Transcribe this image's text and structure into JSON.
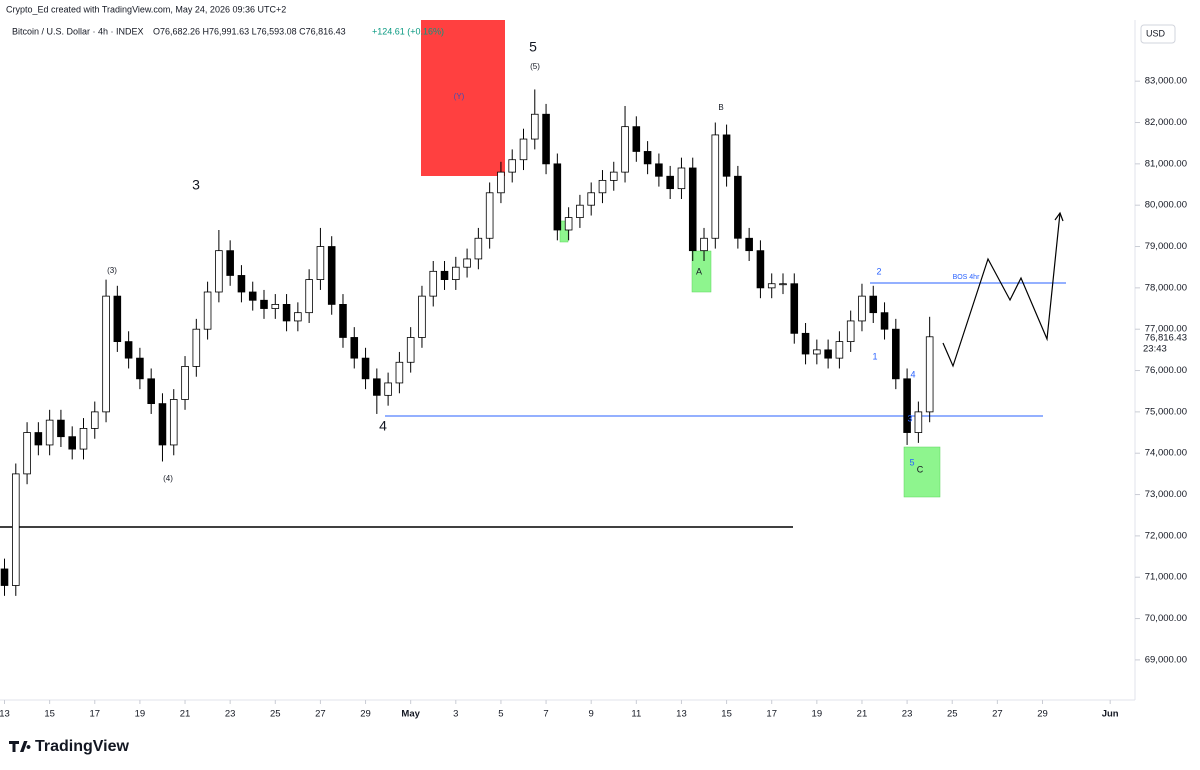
{
  "header": {
    "credit": "Crypto_Ed created with TradingView.com, May 24, 2026 09:36 UTC+2",
    "symbol": "Bitcoin / U.S. Dollar · 4h · INDEX",
    "ohlc": "O76,682.26 H76,991.63 L76,593.08 C76,816.43",
    "change": "+124.61 (+0.16%)",
    "currency": "USD",
    "last_price_label": "76,816.43",
    "countdown": "23:43",
    "brand": "TradingView"
  },
  "chart_data": {
    "type": "candlestick",
    "up_color": "#ffffff",
    "down_color": "#000000",
    "outline_color": "#000000",
    "xlim": [
      -0.2,
      50.1
    ],
    "ylim": [
      68030,
      84480
    ],
    "xticks": [
      {
        "value": 0,
        "label": "13"
      },
      {
        "value": 2,
        "label": "15"
      },
      {
        "value": 4,
        "label": "17"
      },
      {
        "value": 6,
        "label": "19"
      },
      {
        "value": 8,
        "label": "21"
      },
      {
        "value": 10,
        "label": "23"
      },
      {
        "value": 12,
        "label": "25"
      },
      {
        "value": 14,
        "label": "27"
      },
      {
        "value": 16,
        "label": "29"
      },
      {
        "value": 18,
        "label": "May"
      },
      {
        "value": 20,
        "label": "3"
      },
      {
        "value": 22,
        "label": "5"
      },
      {
        "value": 24,
        "label": "7"
      },
      {
        "value": 26,
        "label": "9"
      },
      {
        "value": 28,
        "label": "11"
      },
      {
        "value": 30,
        "label": "13"
      },
      {
        "value": 32,
        "label": "15"
      },
      {
        "value": 34,
        "label": "17"
      },
      {
        "value": 36,
        "label": "19"
      },
      {
        "value": 38,
        "label": "21"
      },
      {
        "value": 40,
        "label": "23"
      },
      {
        "value": 42,
        "label": "25"
      },
      {
        "value": 44,
        "label": "27"
      },
      {
        "value": 46,
        "label": "29"
      },
      {
        "value": 49,
        "label": "Jun"
      }
    ],
    "yticks": [
      {
        "value": 69000,
        "label": "69,000.00"
      },
      {
        "value": 70000,
        "label": "70,000.00"
      },
      {
        "value": 71000,
        "label": "71,000.00"
      },
      {
        "value": 72000,
        "label": "72,000.00"
      },
      {
        "value": 73000,
        "label": "73,000.00"
      },
      {
        "value": 74000,
        "label": "74,000.00"
      },
      {
        "value": 75000,
        "label": "75,000.00"
      },
      {
        "value": 76000,
        "label": "76,000.00"
      },
      {
        "value": 77000,
        "label": "77,000.00"
      },
      {
        "value": 78000,
        "label": "78,000.00"
      },
      {
        "value": 79000,
        "label": "79,000.00"
      },
      {
        "value": 80000,
        "label": "80,000.00"
      },
      {
        "value": 81000,
        "label": "81,000.00"
      },
      {
        "value": 82000,
        "label": "82,000.00"
      },
      {
        "value": 83000,
        "label": "83,000.00"
      }
    ],
    "x": [
      0,
      0.5,
      1,
      1.5,
      2,
      2.5,
      3,
      3.5,
      4,
      4.5,
      5,
      5.5,
      6,
      6.5,
      7,
      7.5,
      8,
      8.5,
      9,
      9.5,
      10,
      10.5,
      11,
      11.5,
      12,
      12.5,
      13,
      13.5,
      14,
      14.5,
      15,
      15.5,
      16,
      16.5,
      17,
      17.5,
      18,
      18.5,
      19,
      19.5,
      20,
      20.5,
      21,
      21.5,
      22,
      22.5,
      23,
      23.5,
      24,
      24.5,
      25,
      25.5,
      26,
      26.5,
      27,
      27.5,
      28,
      28.5,
      29,
      29.5,
      30,
      30.5,
      31,
      31.5,
      32,
      32.5,
      33,
      33.5,
      34,
      34.5,
      35,
      35.5,
      36,
      36.5,
      37,
      37.5,
      38,
      38.5,
      39,
      39.5,
      40,
      40.5,
      41
    ],
    "open": [
      71200,
      70800,
      73500,
      74500,
      74200,
      74800,
      74400,
      74100,
      74600,
      75000,
      77800,
      76700,
      76300,
      75800,
      75200,
      74200,
      75300,
      76100,
      77000,
      77900,
      78900,
      78300,
      77900,
      77700,
      77500,
      77600,
      77200,
      77400,
      78200,
      79000,
      77600,
      76800,
      76300,
      75800,
      75400,
      75700,
      76200,
      76800,
      77800,
      78400,
      78200,
      78500,
      78700,
      79200,
      80300,
      80800,
      81100,
      81600,
      82200,
      81000,
      79400,
      79700,
      80000,
      80300,
      80600,
      80800,
      81900,
      81300,
      81000,
      80700,
      80400,
      80900,
      78900,
      79200,
      81700,
      80700,
      79200,
      78900,
      78000,
      78100,
      78100,
      76900,
      76400,
      76500,
      76300,
      76700,
      77200,
      77800,
      77400,
      77000,
      75800,
      74500,
      75000
    ],
    "high": [
      71450,
      73750,
      74750,
      74750,
      75050,
      75050,
      74650,
      74850,
      75250,
      78200,
      78050,
      76950,
      76550,
      76050,
      75450,
      75550,
      76350,
      77250,
      78150,
      79400,
      79150,
      78550,
      78150,
      77950,
      77850,
      77850,
      77650,
      78450,
      79450,
      79250,
      77850,
      77050,
      76550,
      76050,
      75950,
      76450,
      77050,
      78050,
      78650,
      78650,
      78750,
      78950,
      79450,
      80550,
      81050,
      81350,
      81850,
      82800,
      82450,
      81250,
      79950,
      80250,
      80550,
      80850,
      81050,
      82400,
      82150,
      81550,
      81250,
      80950,
      81150,
      81150,
      79450,
      82000,
      81950,
      80950,
      79450,
      79150,
      78350,
      78350,
      78350,
      77150,
      76750,
      76750,
      76950,
      77450,
      78100,
      78050,
      77650,
      77250,
      76050,
      75250,
      77300
    ],
    "low": [
      70550,
      70550,
      73250,
      73950,
      73950,
      74150,
      73850,
      73850,
      74350,
      74750,
      76450,
      76050,
      75550,
      74950,
      73800,
      73950,
      75050,
      75850,
      76750,
      77650,
      78050,
      77650,
      77450,
      77250,
      77250,
      76950,
      76950,
      77150,
      77950,
      77350,
      76550,
      76050,
      75550,
      74950,
      75150,
      75450,
      75950,
      76550,
      77550,
      77950,
      77950,
      78250,
      78450,
      78950,
      80050,
      80550,
      80850,
      81350,
      80750,
      79150,
      79150,
      79450,
      79750,
      80050,
      80350,
      80550,
      81050,
      80750,
      80450,
      80150,
      80150,
      78650,
      78650,
      78950,
      80450,
      78950,
      78650,
      77750,
      77750,
      77850,
      76650,
      76150,
      76150,
      76050,
      76050,
      76450,
      76950,
      77150,
      76750,
      75550,
      74200,
      74250,
      74750
    ],
    "close": [
      70800,
      73500,
      74500,
      74200,
      74800,
      74400,
      74100,
      74600,
      75000,
      77800,
      76700,
      76300,
      75800,
      75200,
      74200,
      75300,
      76100,
      77000,
      77900,
      78900,
      78300,
      77900,
      77700,
      77500,
      77600,
      77200,
      77400,
      78200,
      79000,
      77600,
      76800,
      76300,
      75800,
      75400,
      75700,
      76200,
      76800,
      77800,
      78400,
      78200,
      78500,
      78700,
      79200,
      80300,
      80800,
      81100,
      81600,
      82200,
      81000,
      79400,
      79700,
      80000,
      80300,
      80600,
      80800,
      81900,
      81300,
      81000,
      80700,
      80400,
      80900,
      78900,
      79200,
      81700,
      80700,
      79200,
      78900,
      78000,
      78100,
      78100,
      76900,
      76400,
      76500,
      76300,
      76700,
      77200,
      77800,
      77400,
      77000,
      75800,
      74500,
      75000,
      76816.43
    ],
    "annotations": [
      "3",
      "(3)",
      "(4)",
      "4",
      "5",
      "(5)",
      "(Y)",
      "A",
      "B",
      "2",
      "1",
      "4",
      "3",
      "5",
      "C",
      "BOS 4hr"
    ]
  }
}
